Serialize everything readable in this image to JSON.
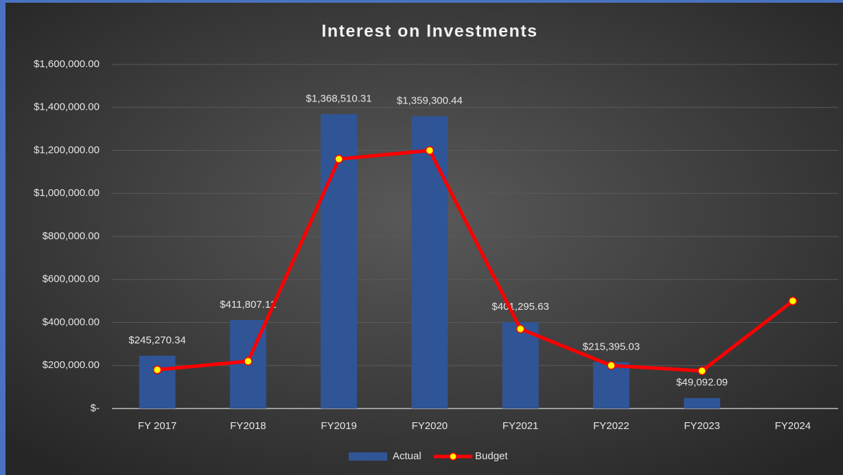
{
  "chart_data": {
    "type": "bar-line",
    "title": "Interest on Investments",
    "categories": [
      "FY 2017",
      "FY2018",
      "FY2019",
      "FY2020",
      "FY2021",
      "FY2022",
      "FY2023",
      "FY2024"
    ],
    "series": [
      {
        "name": "Actual",
        "type": "bar",
        "color": "#2f5597",
        "values": [
          245270.34,
          411807.12,
          1368510.31,
          1359300.44,
          401295.63,
          215395.03,
          49092.09,
          null
        ],
        "value_labels": [
          "$245,270.34",
          "$411,807.12",
          "$1,368,510.31",
          "$1,359,300.44",
          "$401,295.63",
          "$215,395.03",
          "$49,092.09",
          null
        ]
      },
      {
        "name": "Budget",
        "type": "line",
        "color": "#ff0000",
        "marker_color": "#ffff00",
        "values": [
          180000,
          220000,
          1160000,
          1200000,
          370000,
          200000,
          175000,
          500000
        ]
      }
    ],
    "ylim": [
      0,
      1600000
    ],
    "yticks": [
      {
        "value": 0,
        "label": "$-"
      },
      {
        "value": 200000,
        "label": "$200,000.00"
      },
      {
        "value": 400000,
        "label": "$400,000.00"
      },
      {
        "value": 600000,
        "label": "$600,000.00"
      },
      {
        "value": 800000,
        "label": "$800,000.00"
      },
      {
        "value": 1000000,
        "label": "$1,000,000.00"
      },
      {
        "value": 1200000,
        "label": "$1,200,000.00"
      },
      {
        "value": 1400000,
        "label": "$1,400,000.00"
      },
      {
        "value": 1600000,
        "label": "$1,600,000.00"
      }
    ],
    "grid": true,
    "legend": "bottom"
  }
}
